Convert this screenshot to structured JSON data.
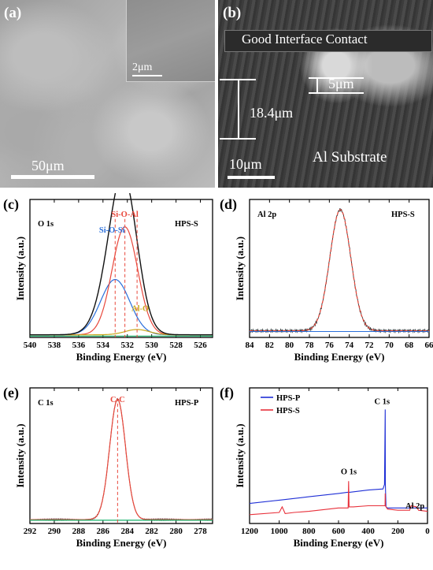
{
  "panel_a": {
    "letter": "(a)",
    "scale_main": "50μm",
    "scale_inset": "2μm"
  },
  "panel_b": {
    "letter": "(b)",
    "banner": "Good Interface  Contact",
    "meas_thickness": "18.4μm",
    "meas_step": "5μm",
    "scale": "10μm",
    "substrate_label": "Al  Substrate"
  },
  "chart_data": [
    {
      "id": "c",
      "letter": "(c)",
      "type": "line",
      "element_label": "O 1s",
      "sample_label": "HPS-S",
      "xlabel": "Binding Energy (eV)",
      "ylabel": "Intensity (a.u.)",
      "xlim": [
        540,
        525
      ],
      "x_ticks": [
        540,
        538,
        536,
        534,
        532,
        530,
        528,
        526
      ],
      "baseline": 0.02,
      "peaks": [
        {
          "name": "Si-O-Si",
          "center": 533.0,
          "width": 1.2,
          "height": 0.42,
          "color": "#2a6fdb"
        },
        {
          "name": "Si-O-Al",
          "center": 532.2,
          "width": 1.05,
          "height": 0.82,
          "color": "#e8473b"
        },
        {
          "name": "Al-O",
          "center": 531.2,
          "width": 1.0,
          "height": 0.04,
          "color": "#c9a81c"
        }
      ],
      "dashed_at": [
        533.0,
        532.2,
        531.2
      ],
      "colors": {
        "envelope": "#111111",
        "raw": "#a52a2a",
        "background": "#17b36b"
      }
    },
    {
      "id": "d",
      "letter": "(d)",
      "type": "line",
      "element_label": "Al 2p",
      "sample_label": "HPS-S",
      "xlabel": "Binding Energy (eV)",
      "ylabel": "Intensity (a.u.)",
      "xlim": [
        84,
        66
      ],
      "x_ticks": [
        84,
        82,
        80,
        78,
        76,
        74,
        72,
        70,
        68,
        66
      ],
      "baseline": 0.05,
      "peaks": [
        {
          "name": "Al 2p",
          "center": 74.9,
          "width": 1.05,
          "height": 0.92,
          "color": "#e8473b"
        }
      ],
      "colors": {
        "raw": "#333333",
        "background": "#2a6fdb"
      }
    },
    {
      "id": "e",
      "letter": "(e)",
      "type": "line",
      "element_label": "C 1s",
      "sample_label": "HPS-P",
      "xlabel": "Binding Energy (eV)",
      "ylabel": "Intensity (a.u.)",
      "xlim": [
        292,
        277
      ],
      "x_ticks": [
        292,
        290,
        288,
        286,
        284,
        282,
        280,
        278
      ],
      "baseline": 0.03,
      "peaks": [
        {
          "name": "C-C",
          "center": 284.8,
          "width": 0.65,
          "height": 0.93,
          "color": "#e8473b"
        }
      ],
      "dashed_at": [
        284.8
      ],
      "colors": {
        "raw": "#333333",
        "background": "#17b36b"
      }
    },
    {
      "id": "f",
      "letter": "(f)",
      "type": "line",
      "xlabel": "Binding Energy (eV)",
      "ylabel": "Intensity (a.u.)",
      "xlim": [
        1200,
        0
      ],
      "x_ticks": [
        1200,
        1000,
        800,
        600,
        400,
        200,
        0
      ],
      "series": [
        {
          "name": "HPS-P",
          "color": "#1f2fd6",
          "x": [
            1200,
            1000,
            800,
            600,
            540,
            531,
            525,
            400,
            300,
            290,
            285,
            284,
            280,
            270,
            200,
            100,
            0
          ],
          "y": [
            0.08,
            0.11,
            0.14,
            0.17,
            0.18,
            0.18,
            0.18,
            0.2,
            0.21,
            0.25,
            0.92,
            0.25,
            0.05,
            0.04,
            0.04,
            0.04,
            0.04
          ]
        },
        {
          "name": "HPS-S",
          "color": "#e8303a",
          "x": [
            1200,
            1000,
            980,
            960,
            900,
            800,
            600,
            535,
            532,
            529,
            500,
            400,
            300,
            286,
            285,
            284,
            270,
            200,
            120,
            110,
            75,
            60,
            0
          ],
          "y": [
            -0.02,
            0.0,
            0.05,
            -0.01,
            0.0,
            0.01,
            0.04,
            0.04,
            0.28,
            0.05,
            0.05,
            0.06,
            0.06,
            0.06,
            0.17,
            0.06,
            0.03,
            0.02,
            0.02,
            0.06,
            0.05,
            0.02,
            0.01
          ]
        }
      ],
      "annotations": [
        "C 1s",
        "O 1s",
        "Al 2p"
      ]
    }
  ]
}
